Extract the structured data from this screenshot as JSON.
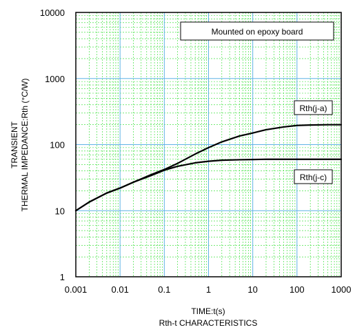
{
  "chart_data": {
    "type": "line",
    "title": "Rth-t CHARACTERISTICS",
    "xlabel": "TIME:t(s)",
    "ylabel": [
      "TRANSIENT",
      "THERMAL IMPEDANCE:Rth  (°C/W)"
    ],
    "x_scale": "log",
    "y_scale": "log",
    "xlim": [
      0.001,
      1000
    ],
    "ylim": [
      1,
      10000
    ],
    "x_ticks": [
      "0.001",
      "0.01",
      "0.1",
      "1",
      "10",
      "100",
      "1000"
    ],
    "y_ticks": [
      "1",
      "10",
      "100",
      "1000",
      "10000"
    ],
    "grid": true,
    "colors": {
      "grid_major": "#5fb3e6",
      "grid_minor": "#22dd22",
      "curve": "#000000"
    },
    "annotation": "Mounted on epoxy board",
    "series": [
      {
        "name": "Rth(j-a)",
        "x": [
          0.001,
          0.002,
          0.005,
          0.01,
          0.02,
          0.05,
          0.1,
          0.2,
          0.5,
          1,
          2,
          5,
          10,
          20,
          50,
          100,
          200,
          500,
          1000
        ],
        "y": [
          10,
          13.5,
          18.5,
          22,
          27,
          35,
          42,
          52,
          72,
          90,
          110,
          135,
          150,
          168,
          185,
          195,
          198,
          200,
          200
        ]
      },
      {
        "name": "Rth(j-c)",
        "x": [
          0.001,
          0.002,
          0.005,
          0.01,
          0.02,
          0.05,
          0.1,
          0.2,
          0.5,
          1,
          2,
          5,
          10,
          20,
          50,
          100,
          200,
          500,
          1000
        ],
        "y": [
          10,
          13.5,
          18.5,
          22,
          27,
          34,
          41,
          47,
          53,
          56,
          58,
          59,
          59.5,
          60,
          60,
          60,
          60,
          60,
          60
        ]
      }
    ]
  }
}
